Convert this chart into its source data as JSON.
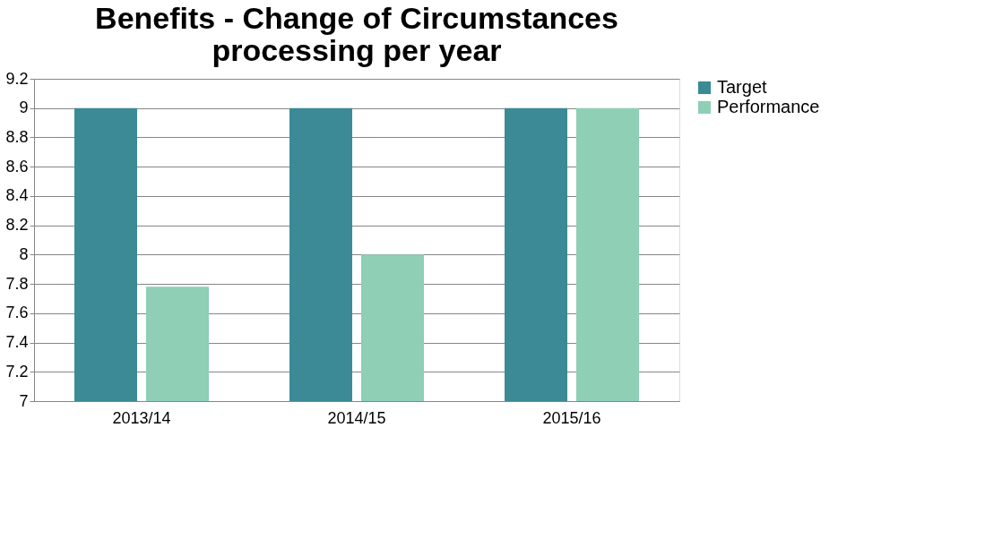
{
  "chart_data": {
    "type": "bar",
    "title": [
      "Benefits - Change of Circumstances",
      "processing  per year"
    ],
    "categories": [
      "2013/14",
      "2014/15",
      "2015/16"
    ],
    "series": [
      {
        "name": "Target",
        "color": "#3b8a96",
        "values": [
          9,
          9,
          9
        ]
      },
      {
        "name": "Performance",
        "color": "#8ecfb6",
        "values": [
          7.78,
          8,
          9
        ]
      }
    ],
    "ylim": [
      7,
      9.2
    ],
    "yticks": [
      7,
      7.2,
      7.4,
      7.6,
      7.8,
      8,
      8.2,
      8.4,
      8.6,
      8.8,
      9,
      9.2
    ],
    "grid": "y",
    "legend": "right"
  }
}
